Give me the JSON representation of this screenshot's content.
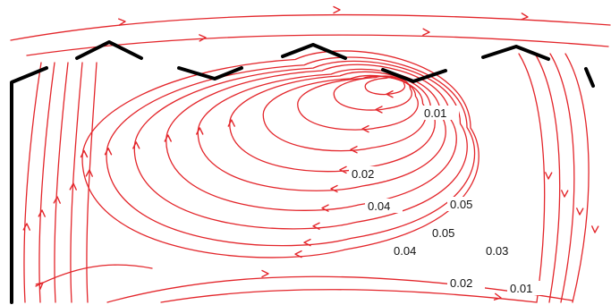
{
  "colors": {
    "streamline": "#e3262b",
    "wall": "#000000",
    "label": "#111111",
    "background": "#ffffff"
  },
  "contour_labels": [
    {
      "key": "c001_top",
      "text": "0.01"
    },
    {
      "key": "c002_mid",
      "text": "0.02"
    },
    {
      "key": "c004_left",
      "text": "0.04"
    },
    {
      "key": "c005_right",
      "text": "0.05"
    },
    {
      "key": "c005_mid",
      "text": "0.05"
    },
    {
      "key": "c004_lower",
      "text": "0.04"
    },
    {
      "key": "c003_lower",
      "text": "0.03"
    },
    {
      "key": "c002_bottom",
      "text": "0.02"
    },
    {
      "key": "c001_bottom",
      "text": "0.01"
    }
  ]
}
